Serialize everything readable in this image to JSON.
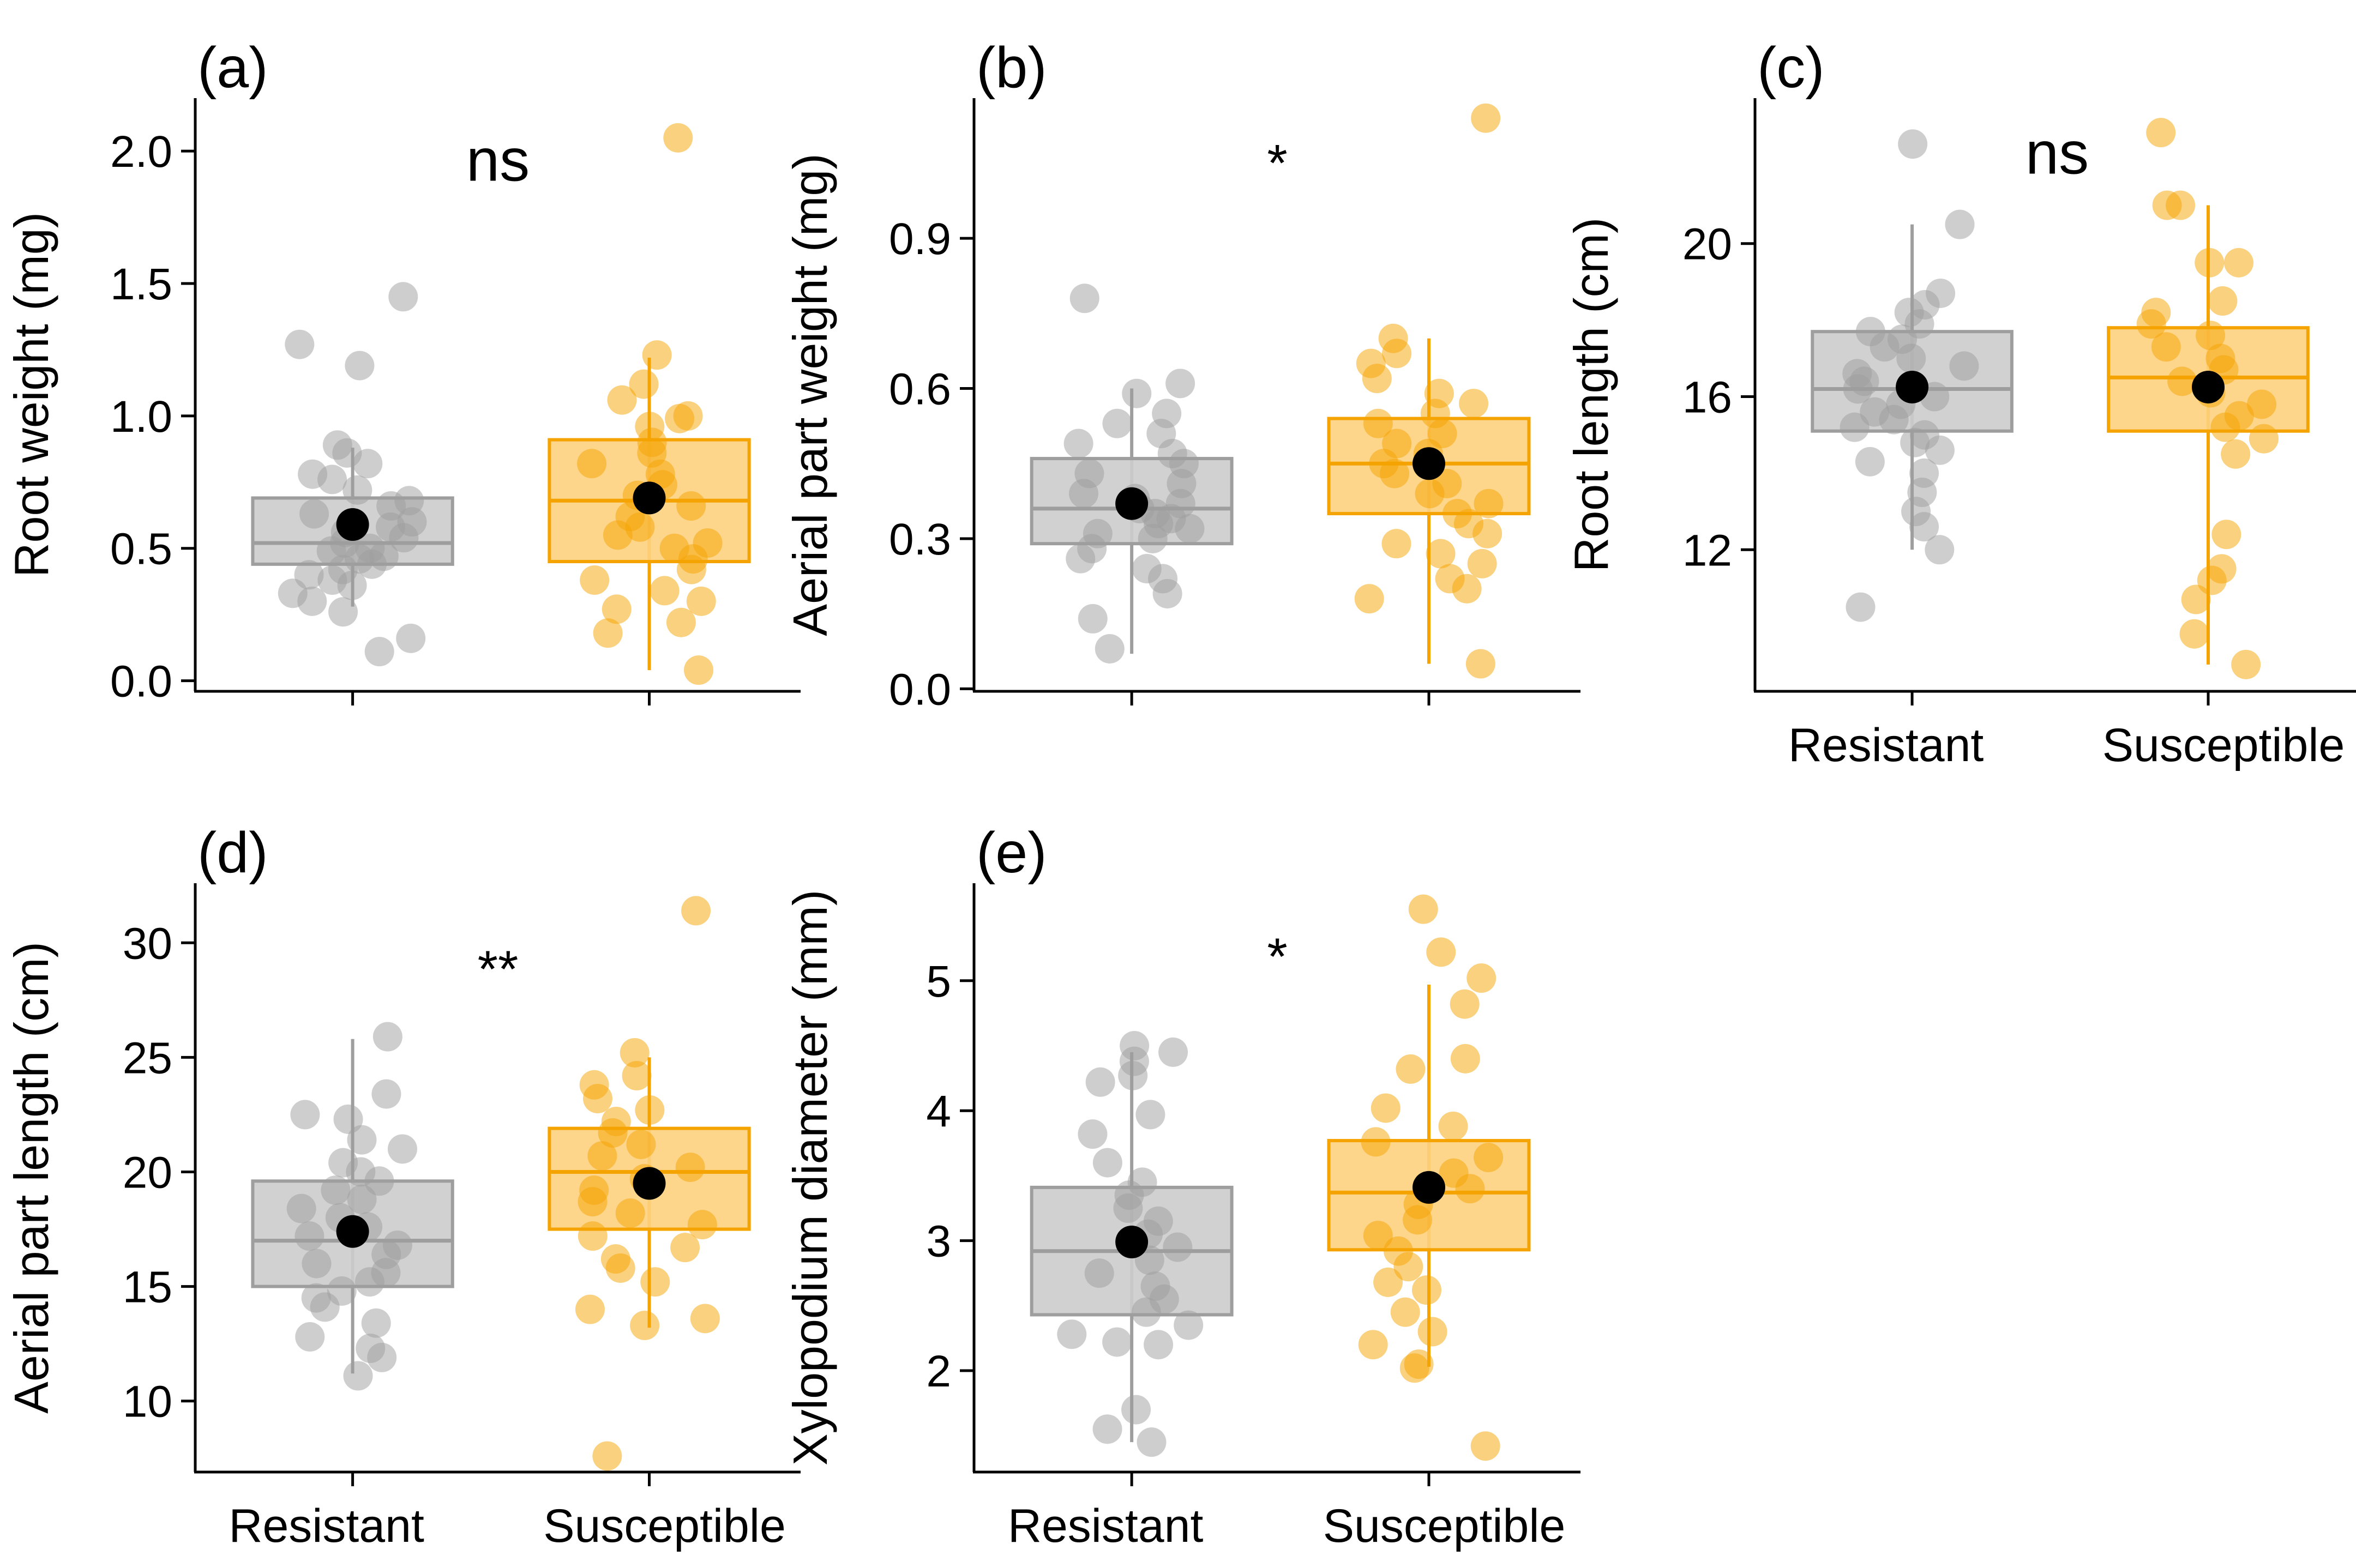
{
  "colors": {
    "resistant": "#9e9e9e",
    "resistant_fill": "#cccccc",
    "susceptible": "#f5a300",
    "susceptible_fill": "#fdd27f",
    "mean": "#000000",
    "axis": "#000000"
  },
  "chart_data": [
    {
      "id": "a",
      "type": "box",
      "panel_label": "(a)",
      "title": "",
      "ylabel": "Root weight (mg)",
      "xlabel": "",
      "categories": [
        "Resistant",
        "Susceptible"
      ],
      "show_category_labels": false,
      "ylim": [
        -0.04,
        2.2
      ],
      "yticks": [
        {
          "v": 0.0,
          "label": "0.0"
        },
        {
          "v": 0.5,
          "label": "0.5"
        },
        {
          "v": 1.0,
          "label": "1.0"
        },
        {
          "v": 1.5,
          "label": "1.5"
        },
        {
          "v": 2.0,
          "label": "2.0"
        }
      ],
      "significance": {
        "label": "ns",
        "x": 1.5,
        "y": 1.97
      },
      "series": [
        {
          "name": "Resistant",
          "box": {
            "q1": 0.44,
            "median": 0.52,
            "q3": 0.69,
            "whisker_low": 0.28,
            "whisker_high": 0.88
          },
          "mean": 0.59,
          "points": [
            1.45,
            1.27,
            1.19,
            0.89,
            0.86,
            0.82,
            0.78,
            0.76,
            0.72,
            0.68,
            0.66,
            0.63,
            0.6,
            0.58,
            0.56,
            0.54,
            0.52,
            0.5,
            0.49,
            0.47,
            0.46,
            0.44,
            0.42,
            0.4,
            0.38,
            0.36,
            0.33,
            0.3,
            0.26,
            0.16,
            0.11
          ]
        },
        {
          "name": "Susceptible",
          "box": {
            "q1": 0.45,
            "median": 0.68,
            "q3": 0.91,
            "whisker_low": 0.04,
            "whisker_high": 1.22
          },
          "mean": 0.69,
          "points": [
            2.05,
            1.23,
            1.12,
            1.06,
            1.0,
            0.99,
            0.96,
            0.9,
            0.86,
            0.82,
            0.78,
            0.74,
            0.7,
            0.66,
            0.62,
            0.58,
            0.55,
            0.52,
            0.5,
            0.46,
            0.42,
            0.38,
            0.34,
            0.3,
            0.27,
            0.22,
            0.18,
            0.04
          ]
        }
      ]
    },
    {
      "id": "b",
      "type": "box",
      "panel_label": "(b)",
      "title": "",
      "ylabel": "Aerial part weight (mg)",
      "xlabel": "",
      "categories": [
        "Resistant",
        "Susceptible"
      ],
      "show_category_labels": false,
      "ylim": [
        -0.005,
        1.18
      ],
      "yticks": [
        {
          "v": 0.0,
          "label": "0.0"
        },
        {
          "v": 0.3,
          "label": "0.3"
        },
        {
          "v": 0.6,
          "label": "0.6"
        },
        {
          "v": 0.9,
          "label": "0.9"
        }
      ],
      "significance": {
        "label": "*",
        "x": 1.5,
        "y": 1.08
      },
      "series": [
        {
          "name": "Resistant",
          "box": {
            "q1": 0.29,
            "median": 0.36,
            "q3": 0.46,
            "whisker_low": 0.07,
            "whisker_high": 0.6
          },
          "mean": 0.37,
          "points": [
            0.78,
            0.61,
            0.59,
            0.55,
            0.53,
            0.51,
            0.49,
            0.47,
            0.45,
            0.43,
            0.41,
            0.39,
            0.38,
            0.37,
            0.36,
            0.35,
            0.34,
            0.33,
            0.32,
            0.31,
            0.3,
            0.28,
            0.26,
            0.24,
            0.22,
            0.19,
            0.14,
            0.08
          ]
        },
        {
          "name": "Susceptible",
          "box": {
            "q1": 0.35,
            "median": 0.45,
            "q3": 0.54,
            "whisker_low": 0.05,
            "whisker_high": 0.7
          },
          "mean": 0.45,
          "points": [
            1.14,
            0.7,
            0.67,
            0.65,
            0.62,
            0.59,
            0.57,
            0.55,
            0.53,
            0.51,
            0.49,
            0.47,
            0.45,
            0.43,
            0.41,
            0.39,
            0.37,
            0.35,
            0.33,
            0.31,
            0.29,
            0.27,
            0.25,
            0.22,
            0.2,
            0.18,
            0.05
          ]
        }
      ]
    },
    {
      "id": "c",
      "type": "box",
      "panel_label": "(c)",
      "title": "",
      "ylabel": "Root length (cm)",
      "xlabel": "",
      "categories": [
        "Resistant",
        "Susceptible"
      ],
      "show_category_labels": true,
      "ylim": [
        8.3,
        23.8
      ],
      "yticks": [
        {
          "v": 12,
          "label": "12"
        },
        {
          "v": 16,
          "label": "16"
        },
        {
          "v": 20,
          "label": "20"
        }
      ],
      "significance": {
        "label": "ns",
        "x": 1.5,
        "y": 22.4
      },
      "series": [
        {
          "name": "Resistant",
          "box": {
            "q1": 15.1,
            "median": 16.2,
            "q3": 17.7,
            "whisker_low": 12.0,
            "whisker_high": 20.5
          },
          "mean": 16.25,
          "points": [
            22.6,
            20.5,
            18.7,
            18.4,
            18.2,
            17.9,
            17.7,
            17.5,
            17.3,
            17.0,
            16.8,
            16.6,
            16.4,
            16.2,
            16.0,
            15.8,
            15.6,
            15.4,
            15.2,
            15.0,
            14.8,
            14.6,
            14.3,
            14.0,
            13.5,
            13.0,
            12.6,
            12.0,
            10.5
          ]
        },
        {
          "name": "Susceptible",
          "box": {
            "q1": 15.1,
            "median": 16.5,
            "q3": 17.8,
            "whisker_low": 9.0,
            "whisker_high": 21.0
          },
          "mean": 16.25,
          "points": [
            22.9,
            21.0,
            21.0,
            19.5,
            19.5,
            18.5,
            18.2,
            17.9,
            17.6,
            17.3,
            17.0,
            16.7,
            16.4,
            16.1,
            15.8,
            15.5,
            15.2,
            14.9,
            14.5,
            12.4,
            11.5,
            11.2,
            10.7,
            9.8,
            9.0
          ]
        }
      ]
    },
    {
      "id": "d",
      "type": "box",
      "panel_label": "(d)",
      "title": "",
      "ylabel": "Aerial part length (cm)",
      "xlabel": "",
      "categories": [
        "Resistant",
        "Susceptible"
      ],
      "show_category_labels": true,
      "ylim": [
        6.9,
        32.6
      ],
      "yticks": [
        {
          "v": 10,
          "label": "10"
        },
        {
          "v": 15,
          "label": "15"
        },
        {
          "v": 20,
          "label": "20"
        },
        {
          "v": 25,
          "label": "25"
        },
        {
          "v": 30,
          "label": "30"
        }
      ],
      "significance": {
        "label": "**",
        "x": 1.5,
        "y": 29.5
      },
      "series": [
        {
          "name": "Resistant",
          "box": {
            "q1": 15.0,
            "median": 17.0,
            "q3": 19.6,
            "whisker_low": 11.2,
            "whisker_high": 25.8
          },
          "mean": 17.4,
          "points": [
            25.9,
            23.4,
            22.5,
            22.3,
            21.4,
            21.0,
            20.4,
            20.0,
            19.6,
            19.2,
            18.8,
            18.4,
            18.0,
            17.6,
            17.2,
            16.8,
            16.4,
            16.0,
            15.6,
            15.2,
            14.8,
            14.5,
            14.1,
            13.4,
            12.8,
            12.3,
            11.9,
            11.1
          ]
        },
        {
          "name": "Susceptible",
          "box": {
            "q1": 17.5,
            "median": 20.0,
            "q3": 21.9,
            "whisker_low": 13.2,
            "whisker_high": 25.0
          },
          "mean": 19.5,
          "points": [
            31.4,
            25.2,
            24.2,
            23.8,
            23.2,
            22.7,
            22.2,
            21.7,
            21.2,
            20.7,
            20.2,
            19.7,
            19.2,
            18.7,
            18.2,
            17.7,
            17.2,
            16.7,
            16.2,
            15.8,
            15.2,
            14.0,
            13.6,
            13.3,
            7.6
          ]
        }
      ]
    },
    {
      "id": "e",
      "type": "box",
      "panel_label": "(e)",
      "title": "",
      "ylabel": "Xylopodium diameter (mm)",
      "xlabel": "",
      "categories": [
        "Resistant",
        "Susceptible"
      ],
      "show_category_labels": true,
      "ylim": [
        1.22,
        5.75
      ],
      "yticks": [
        {
          "v": 2,
          "label": "2"
        },
        {
          "v": 3,
          "label": "3"
        },
        {
          "v": 4,
          "label": "4"
        },
        {
          "v": 5,
          "label": "5"
        }
      ],
      "significance": {
        "label": "*",
        "x": 1.5,
        "y": 5.3
      },
      "series": [
        {
          "name": "Resistant",
          "box": {
            "q1": 2.43,
            "median": 2.92,
            "q3": 3.41,
            "whisker_low": 1.45,
            "whisker_high": 4.45
          },
          "mean": 2.99,
          "points": [
            4.5,
            4.45,
            4.38,
            4.27,
            4.22,
            3.97,
            3.82,
            3.6,
            3.45,
            3.35,
            3.25,
            3.15,
            3.05,
            2.95,
            2.85,
            2.75,
            2.65,
            2.55,
            2.45,
            2.35,
            2.28,
            2.22,
            2.2,
            1.7,
            1.55,
            1.45
          ]
        },
        {
          "name": "Susceptible",
          "box": {
            "q1": 2.93,
            "median": 3.37,
            "q3": 3.77,
            "whisker_low": 2.03,
            "whisker_high": 4.97
          },
          "mean": 3.41,
          "points": [
            5.55,
            5.22,
            5.02,
            4.82,
            4.4,
            4.32,
            4.02,
            3.88,
            3.76,
            3.64,
            3.52,
            3.4,
            3.28,
            3.16,
            3.04,
            2.92,
            2.8,
            2.68,
            2.62,
            2.45,
            2.3,
            2.2,
            2.05,
            2.02,
            1.42
          ]
        }
      ]
    }
  ]
}
